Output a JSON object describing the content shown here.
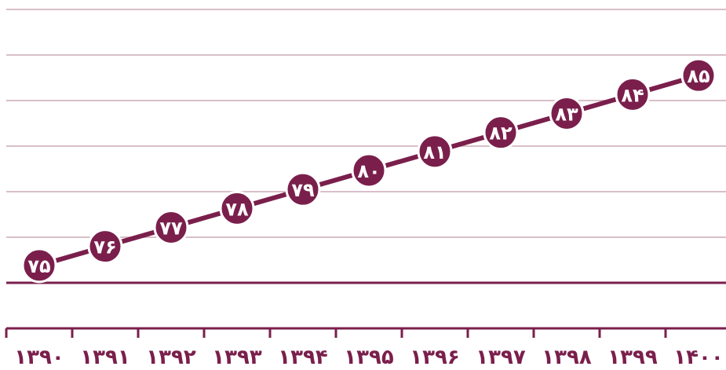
{
  "chart_data": {
    "type": "line",
    "categories": [
      "۱۳۹۰",
      "۱۳۹۱",
      "۱۳۹۲",
      "۱۳۹۳",
      "۱۳۹۴",
      "۱۳۹۵",
      "۱۳۹۶",
      "۱۳۹۷",
      "۱۳۹۸",
      "۱۳۹۹",
      "۱۴۰۰"
    ],
    "series": [
      {
        "values": [
          75,
          76,
          77,
          78,
          79,
          80,
          81,
          82,
          83,
          84,
          85
        ],
        "data_labels": [
          "۷۵",
          "۷۶",
          "۷۷",
          "۷۸",
          "۷۹",
          "۸۰",
          "۸۱",
          "۸۲",
          "۸۳",
          "۸۴",
          "۸۵"
        ]
      }
    ],
    "title": "",
    "xlabel": "",
    "ylabel": "",
    "ylim": [
      74,
      86
    ],
    "grid": true,
    "legend": "none",
    "colors": {
      "series": "#7a1f4c",
      "grid": "#d9bfc9",
      "axis": "#7a1f4c",
      "label_text": "#ffffff"
    }
  }
}
